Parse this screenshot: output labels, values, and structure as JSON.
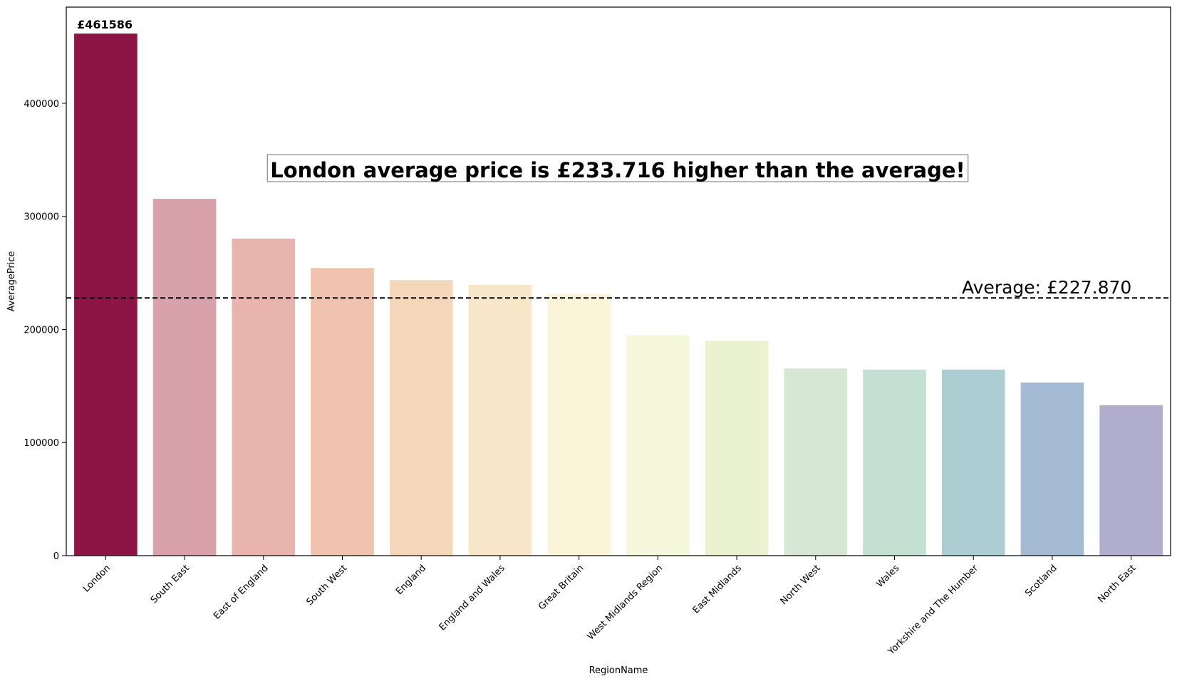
{
  "chart_data": {
    "type": "bar",
    "xlabel": "RegionName",
    "ylabel": "AveragePrice",
    "ylim": [
      0,
      485000
    ],
    "yticks": [
      0,
      100000,
      200000,
      300000,
      400000
    ],
    "ytick_labels": [
      "0",
      "100000",
      "200000",
      "300000",
      "400000"
    ],
    "categories": [
      "London",
      "South East",
      "East of England",
      "South West",
      "England",
      "England and Wales",
      "Great Britain",
      "West Midlands Region",
      "East Midlands",
      "North West",
      "Wales",
      "Yorkshire and The Humber",
      "Scotland",
      "North East"
    ],
    "values": [
      461586,
      315500,
      280300,
      254300,
      243600,
      239500,
      231500,
      195000,
      190000,
      165500,
      164500,
      164500,
      153000,
      133000
    ],
    "colors": [
      "#8c1545",
      "#d9a1aa",
      "#e8b4ad",
      "#f0c3af",
      "#f4d6b8",
      "#f7e7c8",
      "#fbf4d8",
      "#f6f8db",
      "#ebf2d2",
      "#d6e8d4",
      "#c4e0d3",
      "#accdd1",
      "#a4bbd3",
      "#b0adcd"
    ],
    "bar_label": "£461586",
    "average": {
      "value": 227870,
      "label": "Average: £227.870"
    },
    "annotation": "London average price is £233.716 higher than the average!",
    "grid": false
  }
}
